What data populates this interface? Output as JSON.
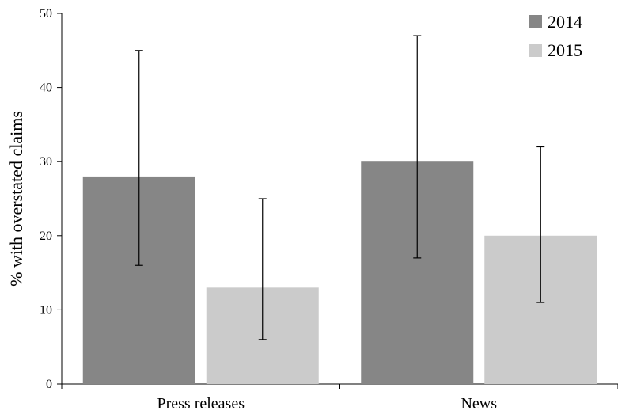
{
  "chart_data": {
    "type": "bar",
    "title": "",
    "xlabel": "",
    "ylabel": "% with overstated claims",
    "ylim": [
      0,
      50
    ],
    "yticks": [
      0,
      10,
      20,
      30,
      40,
      50
    ],
    "categories": [
      "Press releases",
      "News"
    ],
    "series": [
      {
        "name": "2014",
        "color": "#868686",
        "values": [
          28,
          30
        ],
        "error_low": [
          16,
          17
        ],
        "error_high": [
          45,
          47
        ]
      },
      {
        "name": "2015",
        "color": "#cbcbcb",
        "values": [
          13,
          20
        ],
        "error_low": [
          6,
          11
        ],
        "error_high": [
          25,
          32
        ]
      }
    ],
    "legend_position": "top-right",
    "grid": false
  }
}
